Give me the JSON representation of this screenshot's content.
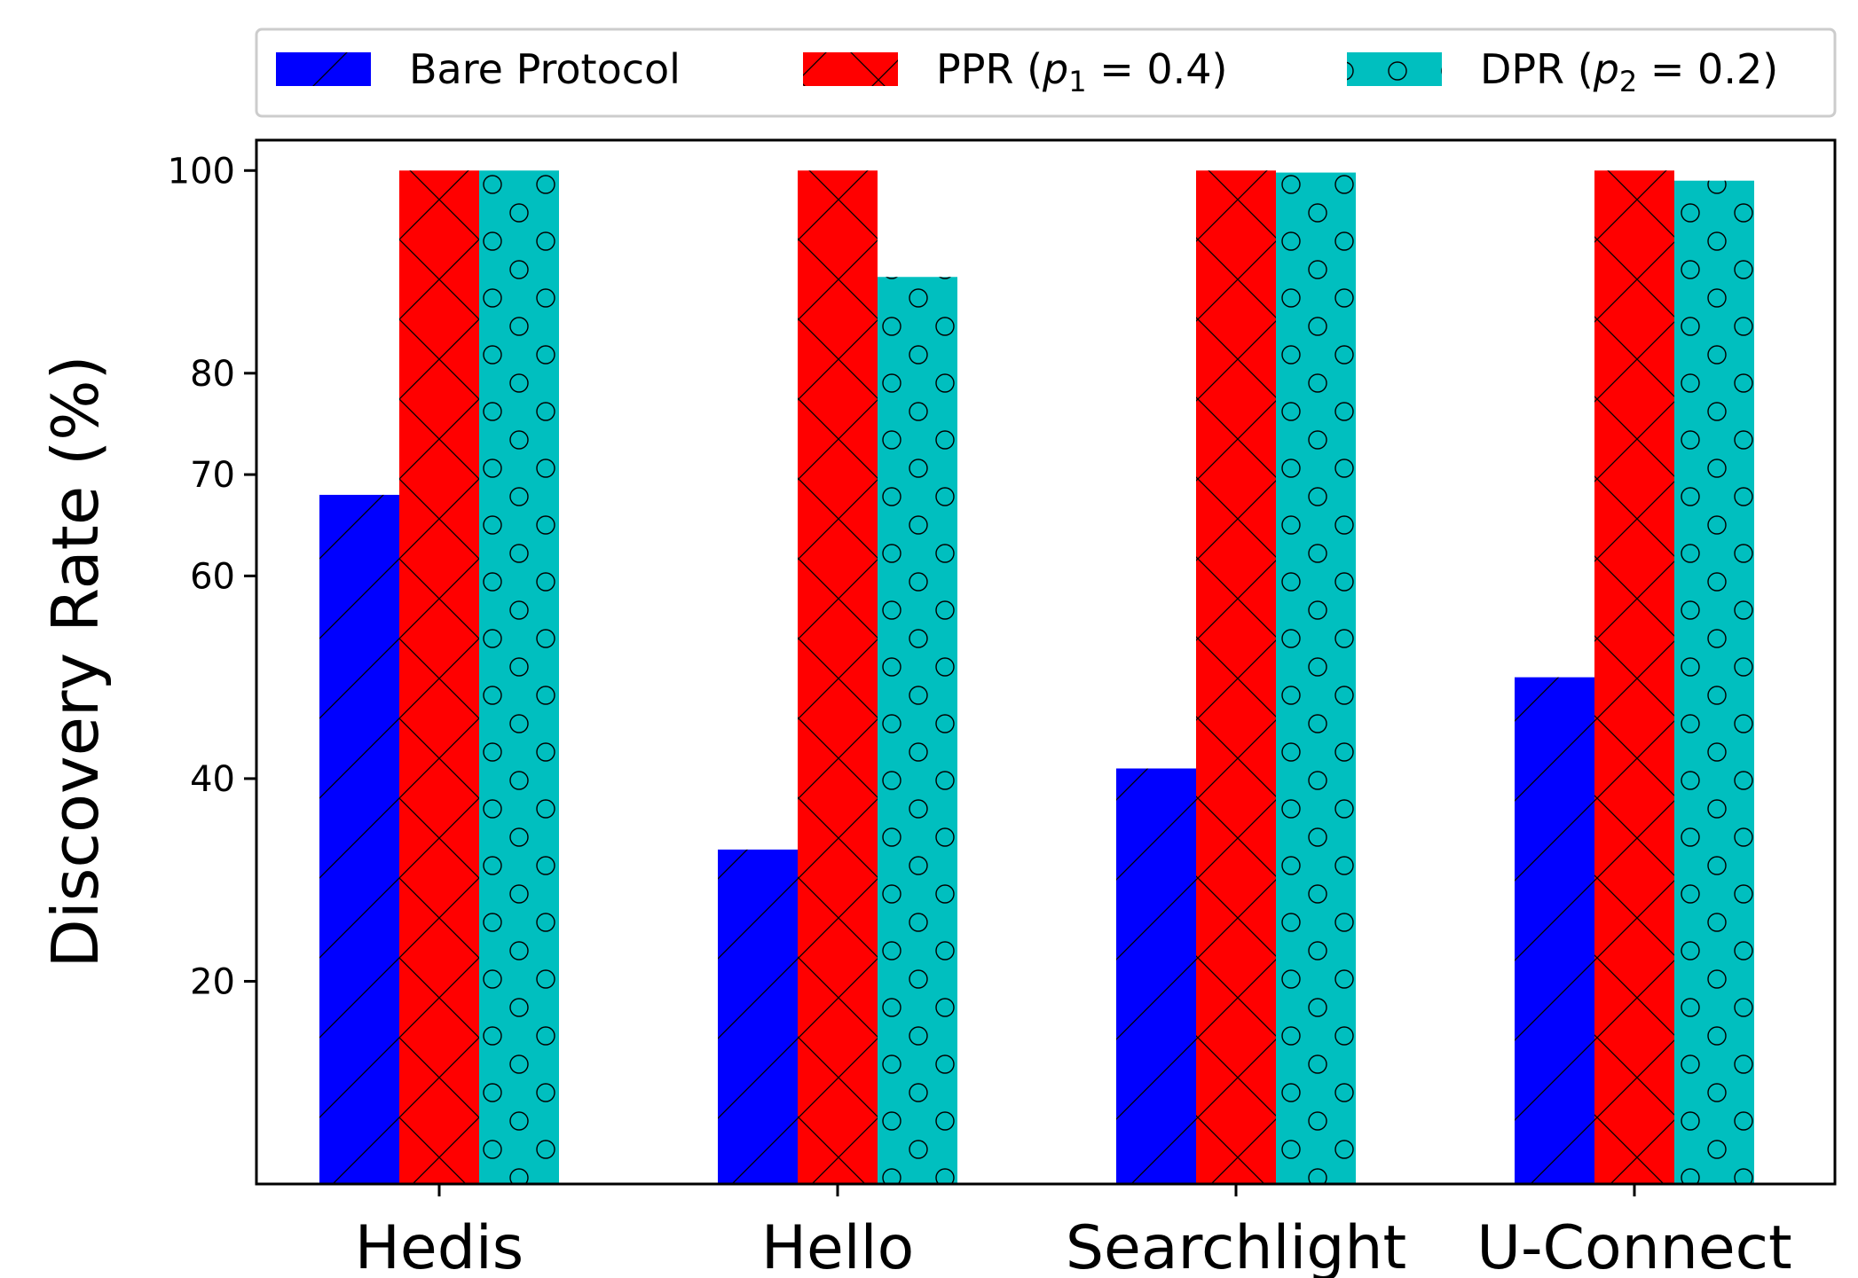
{
  "chart_data": {
    "type": "bar",
    "categories": [
      "Hedis",
      "Hello",
      "Searchlight",
      "U-Connect"
    ],
    "ylabel": "Discovery Rate (%)",
    "xlabel": "",
    "ylim": [
      0,
      103
    ],
    "yticks": [
      20,
      40,
      60,
      70,
      80,
      100
    ],
    "grid": false,
    "legend_position": "top",
    "series": [
      {
        "name": "Bare Protocol",
        "legend_prefix": "Bare Protocol",
        "legend_math": "",
        "color": "#0000ff",
        "hatch": "diagonal",
        "values": [
          68,
          33,
          41,
          50
        ]
      },
      {
        "name": "PPR (p1 = 0.4)",
        "legend_prefix": "PPR (",
        "legend_var": "p",
        "legend_sub": "1",
        "legend_rest": " = 0.4)",
        "color": "#ff0000",
        "hatch": "cross",
        "values": [
          100,
          100,
          100,
          100
        ]
      },
      {
        "name": "DPR (p2 = 0.2)",
        "legend_prefix": "DPR (",
        "legend_var": "p",
        "legend_sub": "2",
        "legend_rest": " = 0.2)",
        "color": "#00bfbf",
        "hatch": "circles",
        "values": [
          100,
          89.5,
          99.8,
          99
        ]
      }
    ]
  }
}
